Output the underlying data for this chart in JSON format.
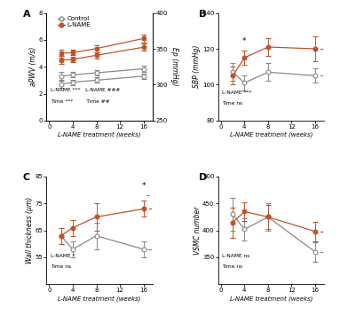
{
  "x": [
    2,
    4,
    8,
    16
  ],
  "panel_A": {
    "label": "A",
    "ylabel_left": "aPWV (m/s)",
    "ylabel_right": "Ep (mmHg)",
    "ylim_left": [
      0,
      8
    ],
    "ylim_right": [
      250,
      400
    ],
    "yticks_left": [
      0,
      2,
      4,
      6,
      8
    ],
    "yticks_right": [
      250,
      300,
      350,
      400
    ],
    "control_top": {
      "y": [
        3.3,
        3.4,
        3.55,
        3.85
      ],
      "yerr": [
        0.3,
        0.2,
        0.2,
        0.2
      ]
    },
    "control_bot": {
      "y": [
        2.7,
        2.85,
        3.0,
        3.3
      ],
      "yerr": [
        0.28,
        0.2,
        0.2,
        0.2
      ]
    },
    "lname_top": {
      "y": [
        5.0,
        5.05,
        5.35,
        6.1
      ],
      "yerr": [
        0.3,
        0.2,
        0.25,
        0.3
      ]
    },
    "lname_bot": {
      "y": [
        4.5,
        4.55,
        4.85,
        5.45
      ],
      "yerr": [
        0.28,
        0.2,
        0.25,
        0.28
      ]
    },
    "annot1": "L-NAME ***   L-NAME ###",
    "annot2": "Time ***        Time ##"
  },
  "panel_B": {
    "label": "B",
    "ylabel": "SBP (mmHg)",
    "ylim": [
      80,
      140
    ],
    "yticks": [
      80,
      100,
      120,
      140
    ],
    "control": {
      "y": [
        107,
        101,
        107,
        105
      ],
      "yerr": [
        5,
        4,
        5,
        4
      ]
    },
    "lname": {
      "y": [
        105,
        115,
        121,
        120
      ],
      "yerr": [
        5,
        4,
        5,
        7
      ]
    },
    "annot1": "L-NAME ***",
    "annot2": "Time ns",
    "star_x": 4.0,
    "star_y": 122,
    "ref_lname": 120,
    "ref_ctrl": 105
  },
  "panel_C": {
    "label": "C",
    "ylabel": "Wall thickness (μm)",
    "ylim": [
      45,
      85
    ],
    "yticks": [
      55,
      65,
      75,
      85
    ],
    "control": {
      "y": [
        63,
        58,
        63,
        58
      ],
      "yerr": [
        3,
        3,
        5,
        3
      ]
    },
    "lname": {
      "y": [
        63,
        66,
        70,
        73
      ],
      "yerr": [
        3,
        3,
        5,
        3
      ]
    },
    "annot1": "L-NAME *",
    "annot2": "Time ns",
    "star_x": 16,
    "star_y": 80,
    "ref_lname": 73,
    "ref_ctrl": 58
  },
  "panel_D": {
    "label": "D",
    "ylabel": "VSMC number",
    "ylim": [
      300,
      500
    ],
    "yticks": [
      350,
      400,
      450,
      500
    ],
    "control": {
      "y": [
        430,
        402,
        425,
        360
      ],
      "yerr": [
        30,
        20,
        25,
        18
      ]
    },
    "lname": {
      "y": [
        415,
        435,
        425,
        398
      ],
      "yerr": [
        28,
        18,
        22,
        18
      ]
    },
    "annot1": "L-NAME ns",
    "annot2": "Time ns",
    "ref_lname": 398,
    "ref_ctrl": 360
  },
  "colors": {
    "control": "#888888",
    "lname": "#c0522a"
  },
  "xlabel": "L-NAME treatment (weeks)",
  "xticks": [
    0,
    4,
    8,
    12,
    16
  ],
  "xlim": [
    -0.5,
    17.5
  ]
}
